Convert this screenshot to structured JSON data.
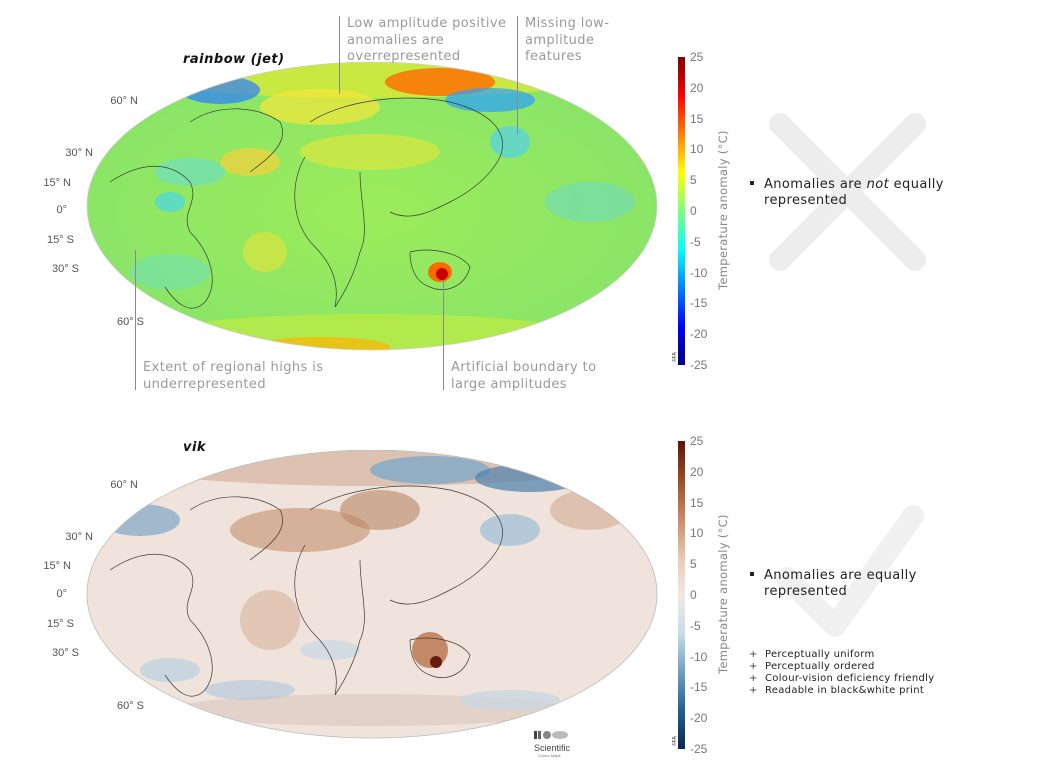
{
  "panels": {
    "top": {
      "title": "rainbow (jet)",
      "lat_labels": [
        "60° N",
        "30° N",
        "15° N",
        "0°",
        "15° S",
        "30° S",
        "60° S"
      ],
      "annotations": {
        "low_amp": "Low amplitude positive anomalies are overrepresented",
        "missing": "Missing low-amplitude features",
        "extent": "Extent of regional highs is underrepresented",
        "boundary": "Artificial boundary to large amplitudes"
      },
      "colorbar": {
        "ticks": [
          "25",
          "20",
          "15",
          "10",
          "5",
          "0",
          "-5",
          "-10",
          "-15",
          "-20",
          "-25"
        ],
        "label": "Temperature anomaly (°C)",
        "credit": "©FA",
        "colors": [
          "#7f0000",
          "#ff0000",
          "#ff8000",
          "#ffff00",
          "#80ff80",
          "#00ffff",
          "#0080ff",
          "#0000ff",
          "#00007f"
        ]
      },
      "verdict_mark": "cross",
      "statement_pre": "Anomalies are ",
      "statement_em": "not",
      "statement_post": " equally",
      "statement_line2": "represented"
    },
    "bottom": {
      "title": "vik",
      "lat_labels": [
        "60° N",
        "30° N",
        "15° N",
        "0°",
        "15° S",
        "30° S",
        "60° S"
      ],
      "colorbar": {
        "ticks": [
          "25",
          "20",
          "15",
          "10",
          "5",
          "0",
          "-5",
          "-10",
          "-15",
          "-20",
          "-25"
        ],
        "label": "Temperature anomaly (°C)",
        "credit": "©FA",
        "colors": [
          "#5e1509",
          "#9b4a24",
          "#c98a62",
          "#e8c7b2",
          "#f1e9e4",
          "#c9dbe7",
          "#6f9fc3",
          "#215f93",
          "#0b2a4f"
        ]
      },
      "verdict_mark": "check",
      "statement_line1": "Anomalies are equally",
      "statement_line2": "represented",
      "pros": [
        "Perceptually uniform",
        "Perceptually ordered",
        "Colour-vision deficiency friendly",
        "Readable in black&white print"
      ],
      "pro_symbol": "+",
      "logo_text": "Scientific",
      "logo_sub": "Colour Maps"
    }
  }
}
